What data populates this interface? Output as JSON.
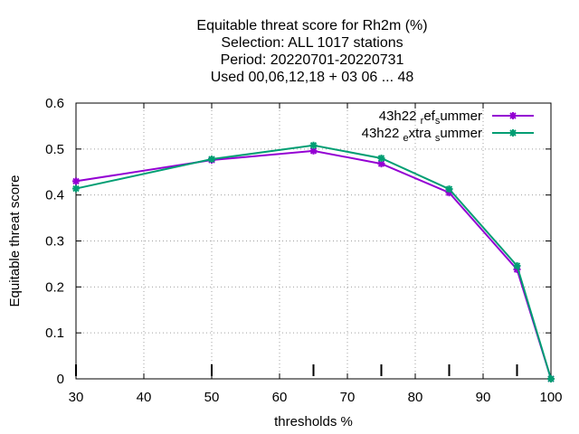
{
  "chart_data": {
    "type": "line",
    "title_lines": [
      "Equitable threat score  for Rh2m (%)",
      "Selection: ALL   1017 stations",
      "Period: 20220701-20220731",
      "Used  00,06,12,18  + 03 06 ... 48"
    ],
    "xlabel": "thresholds %",
    "ylabel": "Equitable threat score",
    "xlim": [
      30,
      100
    ],
    "ylim": [
      0,
      0.6
    ],
    "xticks": [
      30,
      40,
      50,
      60,
      70,
      80,
      90,
      100
    ],
    "yticks": [
      0,
      0.1,
      0.2,
      0.3,
      0.4,
      0.5,
      0.6
    ],
    "grid": true,
    "legend_position": "top-right",
    "threshold_markers": [
      30,
      50,
      65,
      75,
      85,
      95
    ],
    "series": [
      {
        "name": "43h22_ref_summer",
        "legend_parts": [
          {
            "t": "43h22 ",
            "sub": false
          },
          {
            "t": "r",
            "sub": true
          },
          {
            "t": "ef",
            "sub": false
          },
          {
            "t": "s",
            "sub": true
          },
          {
            "t": "ummer",
            "sub": false
          }
        ],
        "color": "#9400d3",
        "x": [
          30,
          50,
          65,
          75,
          85,
          95,
          100
        ],
        "y": [
          0.43,
          0.476,
          0.496,
          0.468,
          0.405,
          0.238,
          0.0
        ]
      },
      {
        "name": "43h22_extra_summer",
        "legend_parts": [
          {
            "t": "43h22 ",
            "sub": false
          },
          {
            "t": "e",
            "sub": true
          },
          {
            "t": "xtra ",
            "sub": false
          },
          {
            "t": "s",
            "sub": true
          },
          {
            "t": "ummer",
            "sub": false
          }
        ],
        "color": "#009e73",
        "x": [
          30,
          50,
          65,
          75,
          85,
          95,
          100
        ],
        "y": [
          0.414,
          0.478,
          0.508,
          0.48,
          0.413,
          0.246,
          0.0
        ]
      }
    ]
  }
}
